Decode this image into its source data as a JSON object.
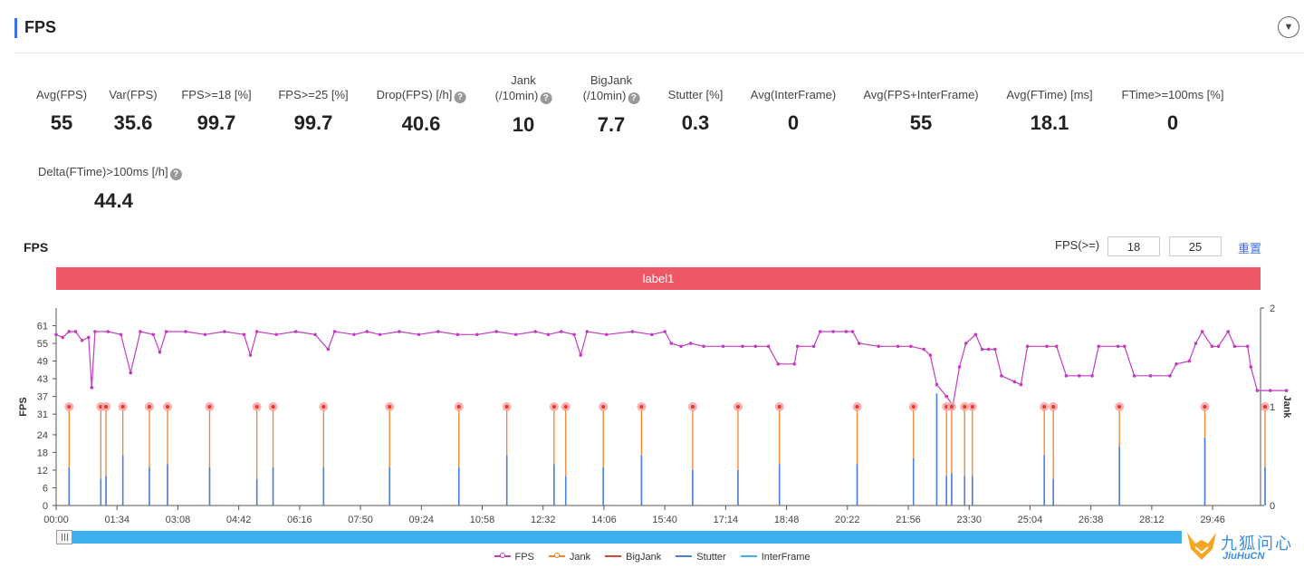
{
  "header": {
    "title": "FPS",
    "collapse_icon": "chevron-down-icon"
  },
  "metrics": [
    {
      "label": "Avg(FPS)",
      "value": "55",
      "help": false
    },
    {
      "label": "Var(FPS)",
      "value": "35.6",
      "help": false
    },
    {
      "label": "FPS>=18 [%]",
      "value": "99.7",
      "help": false
    },
    {
      "label": "FPS>=25 [%]",
      "value": "99.7",
      "help": false
    },
    {
      "label": "Drop(FPS) [/h]",
      "value": "40.6",
      "help": true
    },
    {
      "label": "Jank\n(/10min)",
      "value": "10",
      "help": true
    },
    {
      "label": "BigJank\n(/10min)",
      "value": "7.7",
      "help": true
    },
    {
      "label": "Stutter [%]",
      "value": "0.3",
      "help": false
    },
    {
      "label": "Avg(InterFrame)",
      "value": "0",
      "help": false
    },
    {
      "label": "Avg(FPS+InterFrame)",
      "value": "55",
      "help": false
    },
    {
      "label": "Avg(FTime) [ms]",
      "value": "18.1",
      "help": false
    },
    {
      "label": "FTime>=100ms [%]",
      "value": "0",
      "help": false
    },
    {
      "label": "Delta(FTime)>100ms [/h]",
      "value": "44.4",
      "help": true
    }
  ],
  "chart_header": {
    "title": "FPS",
    "threshold_label": "FPS(>=)",
    "threshold_low": "18",
    "threshold_high": "25",
    "reset_label": "重置"
  },
  "label_band": {
    "text": "label1",
    "color": "#ee5766"
  },
  "legend": [
    {
      "name": "FPS",
      "color": "#c23cc2",
      "symbol": "circle"
    },
    {
      "name": "Jank",
      "color": "#f5822d",
      "symbol": "circle"
    },
    {
      "name": "BigJank",
      "color": "#d9443a",
      "symbol": "line"
    },
    {
      "name": "Stutter",
      "color": "#4a7fe0",
      "symbol": "line"
    },
    {
      "name": "InterFrame",
      "color": "#3fb0ee",
      "symbol": "line"
    }
  ],
  "watermark": {
    "cn": "九狐问心",
    "en": "JiuHuCN"
  },
  "chart_data": {
    "type": "line",
    "x_unit": "seconds",
    "x_range": [
      0,
      1860
    ],
    "x_tick_labels": [
      "00:00",
      "01:34",
      "03:08",
      "04:42",
      "06:16",
      "07:50",
      "09:24",
      "10:58",
      "12:32",
      "14:06",
      "15:40",
      "17:14",
      "18:48",
      "20:22",
      "21:56",
      "23:30",
      "25:04",
      "26:38",
      "28:12",
      "29:46"
    ],
    "x_ticks": [
      0,
      94,
      188,
      282,
      376,
      470,
      564,
      658,
      752,
      846,
      940,
      1034,
      1128,
      1222,
      1316,
      1410,
      1504,
      1598,
      1692,
      1786
    ],
    "y_left": {
      "label": "FPS",
      "ticks": [
        0,
        6,
        12,
        18,
        24,
        31,
        37,
        43,
        49,
        55,
        61
      ],
      "range": [
        0,
        67
      ]
    },
    "y_right": {
      "label": "Jank",
      "ticks": [
        0,
        1,
        2
      ],
      "range": [
        0,
        2
      ]
    },
    "series": [
      {
        "name": "FPS",
        "axis": "left",
        "color": "#c23cc2",
        "points": [
          [
            0,
            58
          ],
          [
            10,
            57
          ],
          [
            20,
            59
          ],
          [
            30,
            59
          ],
          [
            40,
            56
          ],
          [
            50,
            57
          ],
          [
            55,
            40
          ],
          [
            60,
            59
          ],
          [
            80,
            59
          ],
          [
            100,
            58
          ],
          [
            115,
            45
          ],
          [
            130,
            59
          ],
          [
            150,
            58
          ],
          [
            160,
            52
          ],
          [
            170,
            59
          ],
          [
            200,
            59
          ],
          [
            230,
            58
          ],
          [
            260,
            59
          ],
          [
            290,
            58
          ],
          [
            300,
            51
          ],
          [
            310,
            59
          ],
          [
            340,
            58
          ],
          [
            370,
            59
          ],
          [
            400,
            58
          ],
          [
            420,
            53
          ],
          [
            430,
            59
          ],
          [
            460,
            58
          ],
          [
            480,
            59
          ],
          [
            500,
            58
          ],
          [
            530,
            59
          ],
          [
            560,
            58
          ],
          [
            590,
            59
          ],
          [
            620,
            58
          ],
          [
            650,
            58
          ],
          [
            680,
            59
          ],
          [
            710,
            58
          ],
          [
            740,
            59
          ],
          [
            760,
            58
          ],
          [
            780,
            59
          ],
          [
            800,
            58
          ],
          [
            810,
            51
          ],
          [
            820,
            59
          ],
          [
            850,
            58
          ],
          [
            890,
            59
          ],
          [
            920,
            58
          ],
          [
            940,
            59
          ],
          [
            950,
            55
          ],
          [
            965,
            54
          ],
          [
            980,
            55
          ],
          [
            1000,
            54
          ],
          [
            1030,
            54
          ],
          [
            1060,
            54
          ],
          [
            1080,
            54
          ],
          [
            1100,
            54
          ],
          [
            1115,
            48
          ],
          [
            1140,
            48
          ],
          [
            1145,
            54
          ],
          [
            1170,
            54
          ],
          [
            1180,
            59
          ],
          [
            1200,
            59
          ],
          [
            1220,
            59
          ],
          [
            1230,
            59
          ],
          [
            1240,
            55
          ],
          [
            1270,
            54
          ],
          [
            1300,
            54
          ],
          [
            1320,
            54
          ],
          [
            1340,
            53
          ],
          [
            1350,
            51
          ],
          [
            1360,
            41
          ],
          [
            1375,
            37
          ],
          [
            1385,
            34
          ],
          [
            1395,
            47
          ],
          [
            1405,
            55
          ],
          [
            1420,
            58
          ],
          [
            1430,
            53
          ],
          [
            1440,
            53
          ],
          [
            1450,
            53
          ],
          [
            1460,
            44
          ],
          [
            1480,
            42
          ],
          [
            1490,
            41
          ],
          [
            1500,
            54
          ],
          [
            1530,
            54
          ],
          [
            1545,
            54
          ],
          [
            1560,
            44
          ],
          [
            1580,
            44
          ],
          [
            1600,
            44
          ],
          [
            1610,
            54
          ],
          [
            1640,
            54
          ],
          [
            1650,
            54
          ],
          [
            1665,
            44
          ],
          [
            1690,
            44
          ],
          [
            1720,
            44
          ],
          [
            1730,
            48
          ],
          [
            1750,
            49
          ],
          [
            1760,
            55
          ],
          [
            1770,
            59
          ],
          [
            1785,
            54
          ],
          [
            1795,
            54
          ],
          [
            1810,
            59
          ],
          [
            1820,
            54
          ],
          [
            1840,
            54
          ],
          [
            1845,
            47
          ],
          [
            1855,
            39
          ],
          [
            1875,
            39
          ],
          [
            1900,
            39
          ]
        ]
      },
      {
        "name": "Jank",
        "axis": "right",
        "color": "#f5822d",
        "x": [
          20,
          69,
          77,
          103,
          144,
          172,
          237,
          310,
          335,
          413,
          515,
          622,
          696,
          769,
          787,
          845,
          904,
          983,
          1053,
          1117,
          1237,
          1324,
          1375,
          1383,
          1403,
          1415,
          1526,
          1540,
          1642,
          1774,
          1867
        ]
      },
      {
        "name": "Stutter",
        "axis": "left",
        "color": "#4a7fe0",
        "points": [
          [
            20,
            13
          ],
          [
            69,
            9
          ],
          [
            77,
            10
          ],
          [
            103,
            17
          ],
          [
            144,
            13
          ],
          [
            172,
            14
          ],
          [
            237,
            13
          ],
          [
            310,
            9
          ],
          [
            335,
            13
          ],
          [
            413,
            13
          ],
          [
            515,
            13
          ],
          [
            622,
            13
          ],
          [
            696,
            17
          ],
          [
            769,
            14
          ],
          [
            787,
            10
          ],
          [
            845,
            13
          ],
          [
            904,
            17
          ],
          [
            983,
            12
          ],
          [
            1053,
            12
          ],
          [
            1117,
            14
          ],
          [
            1237,
            14
          ],
          [
            1324,
            16
          ],
          [
            1360,
            38
          ],
          [
            1375,
            10
          ],
          [
            1383,
            11
          ],
          [
            1403,
            10
          ],
          [
            1415,
            10
          ],
          [
            1526,
            17
          ],
          [
            1540,
            9
          ],
          [
            1642,
            20
          ],
          [
            1774,
            23
          ],
          [
            1867,
            13
          ]
        ]
      },
      {
        "name": "BigJank",
        "axis": "right",
        "color": "#d9443a",
        "x": []
      },
      {
        "name": "InterFrame",
        "axis": "left",
        "color": "#3fb0ee",
        "x": []
      }
    ],
    "grid": false,
    "legend_position": "bottom"
  }
}
